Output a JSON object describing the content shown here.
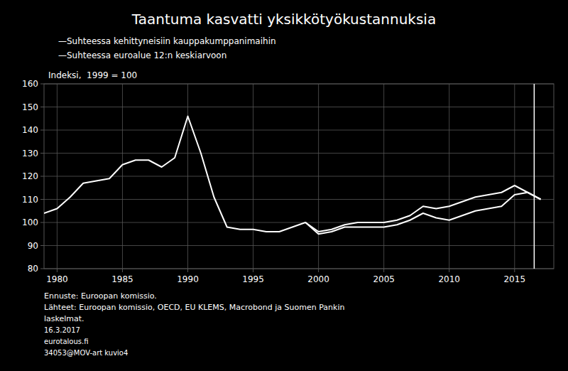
{
  "chart_data": {
    "type": "line",
    "title": "Taantuma kasvatti yksikkötyökustannuksia",
    "ylabel": "Indeksi,  1999 = 100",
    "series": [
      {
        "name": "—Suhteessa kehittyneisiin kauppakumppanimaihin",
        "color": "#ffffff",
        "x": [
          1979,
          1980,
          1981,
          1982,
          1983,
          1984,
          1985,
          1986,
          1987,
          1988,
          1989,
          1990,
          1991,
          1992,
          1993,
          1994,
          1995,
          1996,
          1997,
          1998,
          1999,
          2000,
          2001,
          2002,
          2003,
          2004,
          2005,
          2006,
          2007,
          2008,
          2009,
          2010,
          2011,
          2012,
          2013,
          2014,
          2015,
          2016,
          2017
        ],
        "values": [
          104,
          106,
          111,
          117,
          118,
          119,
          125,
          127,
          127,
          124,
          128,
          146,
          130,
          111,
          98,
          97,
          97,
          96,
          96,
          98,
          100,
          95,
          96,
          98,
          98,
          98,
          98,
          99,
          101,
          104,
          102,
          101,
          103,
          105,
          106,
          107,
          112,
          113,
          110
        ]
      },
      {
        "name": "—Suhteessa euroalue 12:n keskiarvoon",
        "color": "#ffffff",
        "x": [
          1999,
          2000,
          2001,
          2002,
          2003,
          2004,
          2005,
          2006,
          2007,
          2008,
          2009,
          2010,
          2011,
          2012,
          2013,
          2014,
          2015,
          2016,
          2017
        ],
        "values": [
          100,
          96,
          97,
          99,
          100,
          100,
          100,
          101,
          103,
          107,
          106,
          107,
          109,
          111,
          112,
          113,
          116,
          113,
          110
        ]
      }
    ],
    "vline_x": 2016.5,
    "xlim": [
      1979,
      2018
    ],
    "xticks": [
      1980,
      1985,
      1990,
      1995,
      2000,
      2005,
      2010,
      2015
    ],
    "ylim": [
      80,
      160
    ],
    "yticks": [
      80,
      90,
      100,
      110,
      120,
      130,
      140,
      150,
      160
    ],
    "grid": true,
    "annotations": [
      "Ennuste: Euroopan komissio.",
      "Lähteet: Euroopan komissio, OECD, EU KLEMS, Macrobond ja Suomen Pankin",
      "laskelmat.",
      "16.3.2017",
      "eurotalous.fi",
      "34053@MOV-art kuvio4"
    ]
  }
}
